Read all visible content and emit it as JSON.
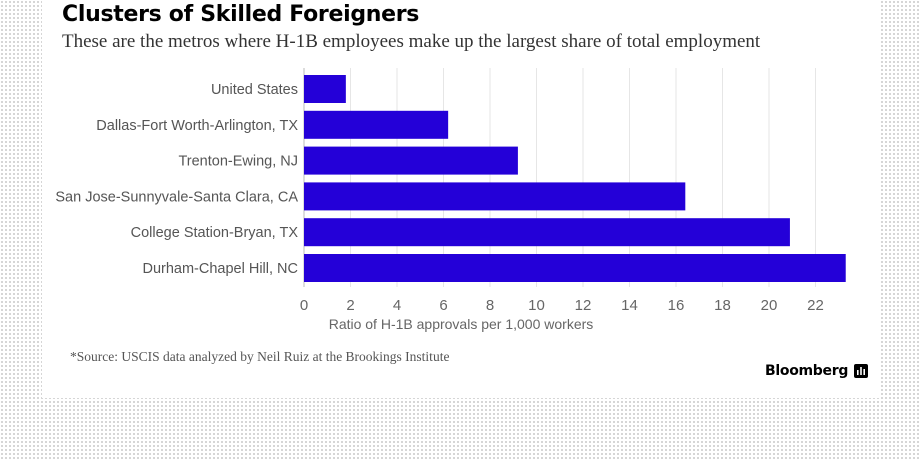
{
  "header": {
    "title": "Clusters of Skilled Foreigners",
    "subtitle": "These are the metros where H-1B employees make up the largest share of total employment"
  },
  "chart_data": {
    "type": "bar",
    "orientation": "horizontal",
    "categories": [
      "United States",
      "Dallas-Fort Worth-Arlington, TX",
      "Trenton-Ewing, NJ",
      "San Jose-Sunnyvale-Santa Clara, CA",
      "College Station-Bryan, TX",
      "Durham-Chapel Hill, NC"
    ],
    "values": [
      1.8,
      6.2,
      9.2,
      16.4,
      20.9,
      23.3
    ],
    "xlabel": "Ratio of H-1B approvals per 1,000 workers",
    "xticks": [
      0,
      2,
      4,
      6,
      8,
      10,
      12,
      14,
      16,
      18,
      20,
      22
    ],
    "xlim": [
      0,
      23.5
    ],
    "grid": true,
    "bar_color": "#2400d8"
  },
  "footer": {
    "source": "*Source: USCIS data analyzed by Neil Ruiz at the Brookings Institute",
    "brand": "Bloomberg"
  }
}
